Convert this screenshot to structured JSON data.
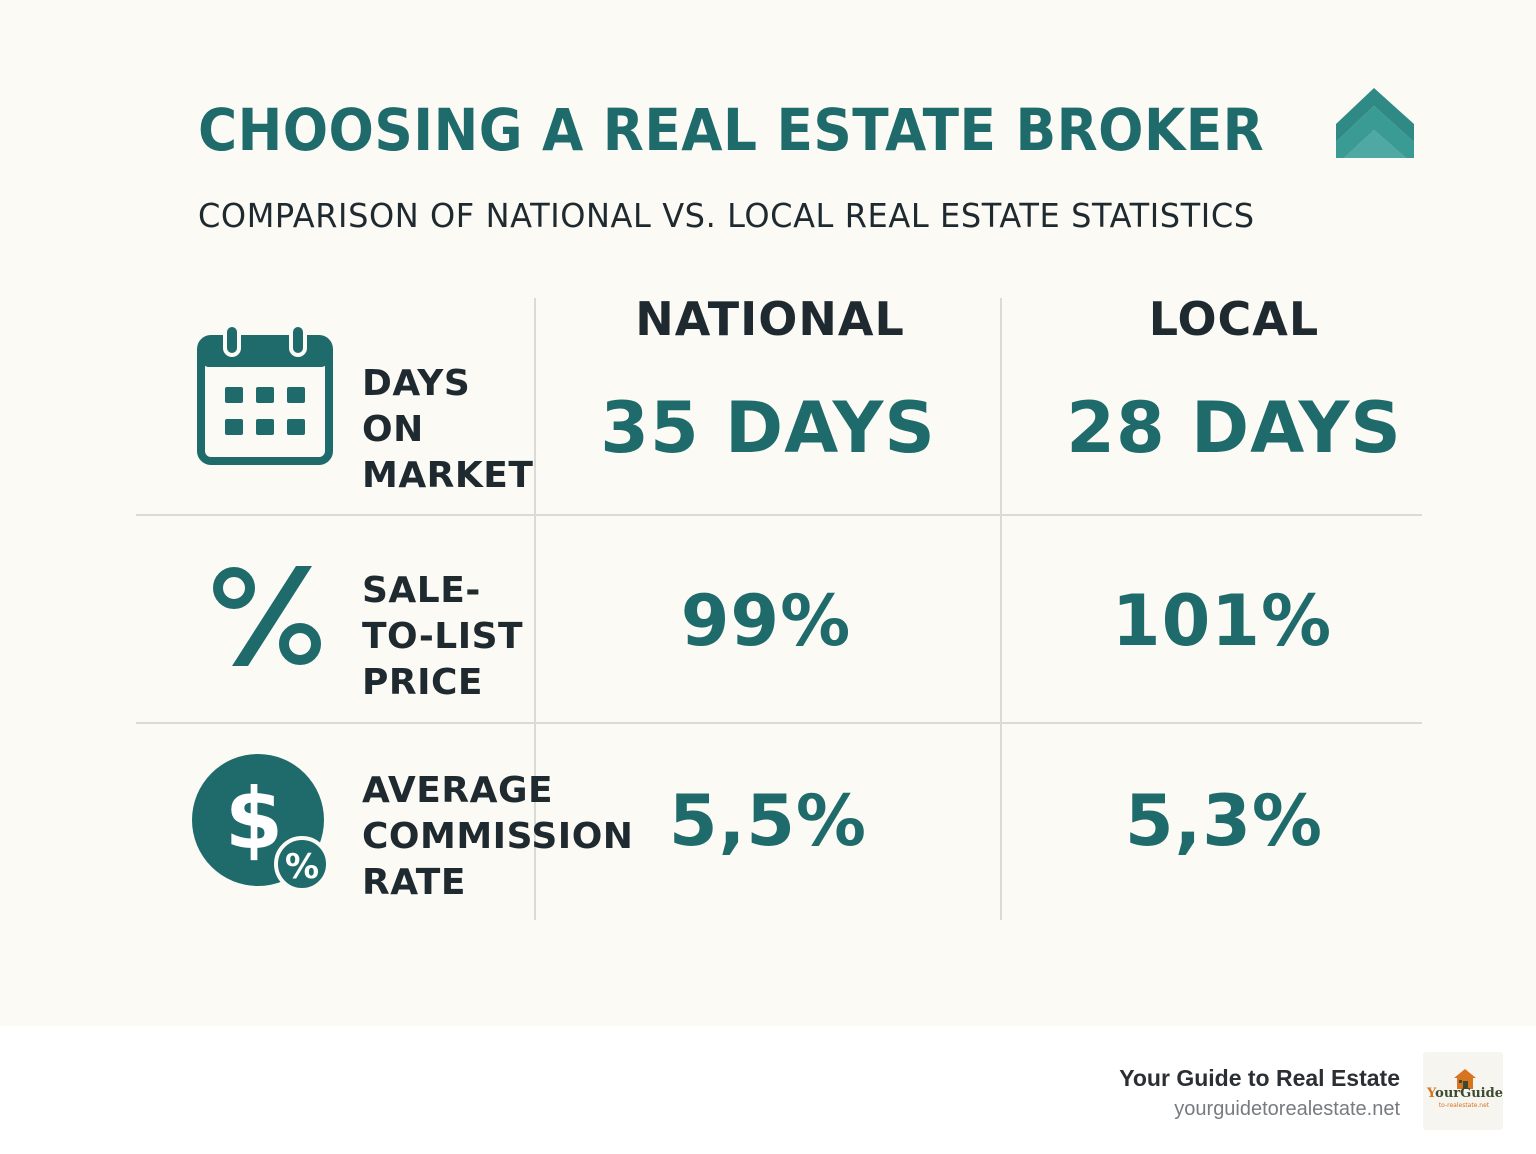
{
  "title": "CHOOSING A REAL ESTATE BROKER",
  "subtitle": "COMPARISON OF NATIONAL VS. LOCAL REAL ESTATE STATISTICS",
  "columns": {
    "national": "NATIONAL",
    "local": "LOCAL"
  },
  "rows": [
    {
      "icon": "calendar-icon",
      "label_lines": [
        "DAYS",
        "ON",
        "MARKET"
      ],
      "national": "35 DAYS",
      "local": "28 DAYS"
    },
    {
      "icon": "percent-icon",
      "label_lines": [
        "SALE-",
        "TO-LIST",
        "PRICE"
      ],
      "national": "99%",
      "local": "101%"
    },
    {
      "icon": "dollar-percent-icon",
      "label_lines": [
        "AVERAGE",
        "COMMISSION",
        "RATE"
      ],
      "national": "5,5%",
      "local": "5,3%"
    }
  ],
  "footer": {
    "brand": "Your Guide to Real Estate",
    "url": "yourguidetorealestate.net",
    "logo_text_y": "Y",
    "logo_text_rest": "ourGuide",
    "logo_subtext": "to-realestate.net"
  },
  "colors": {
    "accent": "#1f6b6b",
    "text": "#1f2a30",
    "background": "#fbfaf4",
    "divider": "#dadbd6"
  }
}
